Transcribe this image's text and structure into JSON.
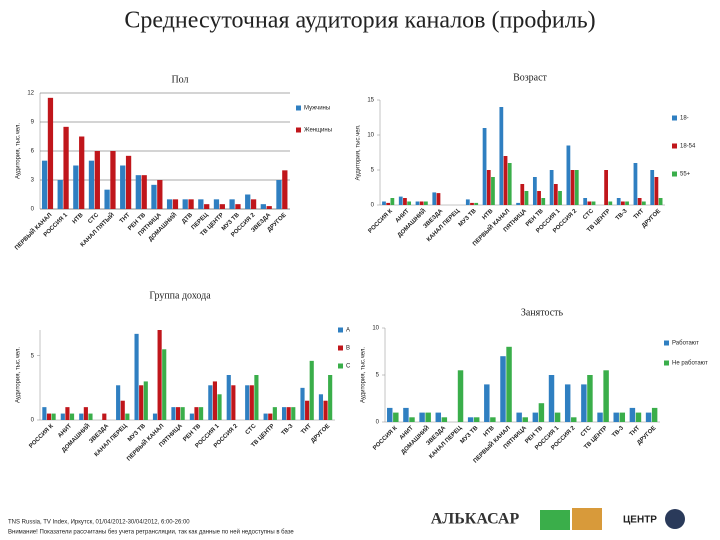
{
  "header": {
    "title": "Среднесуточная аудитория каналов (профиль)"
  },
  "chart_data": [
    {
      "type": "bar",
      "title": "Пол",
      "ylabel": "Аудитория, тыс.чел.",
      "categories": [
        "ПЕРВЫЙ КАНАЛ",
        "РОССИЯ 1",
        "НТВ",
        "СТС",
        "КАНАЛ ПЯТЫЙ",
        "ТНТ",
        "РЕН ТВ",
        "ПЯТНИЦА",
        "ДОМАШНИЙ",
        "ДТВ",
        "ПЕРЕЦ",
        "ТВ ЦЕНТР",
        "МУЗ ТВ",
        "РОССИЯ 2",
        "ЗВЕЗДА",
        "ДРУГОЕ"
      ],
      "series": [
        {
          "name": "Мужчины",
          "color": "#2f7fc1",
          "values": [
            5,
            3,
            4.5,
            5,
            2,
            4.5,
            3.5,
            2.5,
            1,
            1,
            1,
            1,
            1,
            1.5,
            0.5,
            3
          ]
        },
        {
          "name": "Женщины",
          "color": "#c0161b",
          "values": [
            11.5,
            8.5,
            7.5,
            6,
            6,
            5.5,
            3.5,
            3,
            1,
            1,
            0.5,
            0.5,
            0.5,
            1,
            0.3,
            4
          ]
        }
      ],
      "ylim": [
        0,
        12
      ],
      "yticks": [
        0,
        3,
        6,
        9,
        12
      ],
      "grid": true
    },
    {
      "type": "bar",
      "title": "Возраст",
      "ylabel": "Аудитория, тыс.чел.",
      "categories": [
        "РОССИЯ К",
        "АНИТ",
        "ДОМАШНИЙ",
        "ЗВЕЗДА",
        "КАНАЛ ПЕРЕЦ",
        "МУЗ ТВ",
        "НТВ",
        "ПЕРВЫЙ КАНАЛ",
        "ПЯТНИЦА",
        "РЕН ТВ",
        "РОССИЯ 1",
        "РОССИЯ 2",
        "СТС",
        "ТВ ЦЕНТР",
        "ТВ-3",
        "ТНТ",
        "ДРУГОЕ"
      ],
      "series": [
        {
          "name": "18-",
          "color": "#2f7fc1",
          "values": [
            0.5,
            1.2,
            0.5,
            1.8,
            0,
            0.8,
            11,
            14,
            0.3,
            4,
            5,
            8.5,
            1,
            0,
            1,
            6,
            5
          ]
        },
        {
          "name": "18-54",
          "color": "#c0161b",
          "values": [
            0.3,
            1,
            0.5,
            1.7,
            0,
            0.3,
            5,
            7,
            3,
            2,
            3,
            5,
            0.5,
            5,
            0.5,
            1,
            4
          ]
        },
        {
          "name": "55+",
          "color": "#3aae4a",
          "values": [
            1,
            0.5,
            0.5,
            0,
            0,
            0.3,
            4,
            6,
            2,
            1,
            2,
            5,
            0.5,
            0.5,
            0.5,
            0.5,
            1
          ]
        }
      ],
      "ylim": [
        0,
        15
      ],
      "yticks": [
        0,
        5,
        10,
        15
      ],
      "grid": false
    },
    {
      "type": "bar",
      "title": "Группа дохода",
      "ylabel": "Аудитория, тыс.чел.",
      "categories": [
        "РОССИЯ К",
        "АНИТ",
        "ДОМАШНИЙ",
        "ЗВЕЗДА",
        "КАНАЛ ПЕРЕЦ",
        "МУЗ ТВ",
        "ПЕРВЫЙ КАНАЛ",
        "ПЯТНИЦА",
        "РЕН ТВ",
        "РОССИЯ 1",
        "РОССИЯ 2",
        "СТС",
        "ТВ ЦЕНТР",
        "ТВ-3",
        "ТНТ",
        "ДРУГОЕ"
      ],
      "series": [
        {
          "name": "А",
          "color": "#2f7fc1",
          "values": [
            1,
            0.5,
            0.5,
            0,
            2.7,
            6.7,
            0.5,
            1,
            0.5,
            2.7,
            3.5,
            2.7,
            0.5,
            1,
            2.5,
            2
          ]
        },
        {
          "name": "В",
          "color": "#c0161b",
          "values": [
            0.5,
            1,
            1,
            0.5,
            1.5,
            2.7,
            7,
            1,
            1,
            3,
            2.7,
            2.7,
            0.5,
            1,
            1.5,
            1.5
          ]
        },
        {
          "name": "С",
          "color": "#3aae4a",
          "values": [
            0.5,
            0.5,
            0.5,
            0,
            0.5,
            3,
            5.5,
            1,
            1,
            2,
            0,
            3.5,
            1,
            1,
            4.6,
            3.5
          ]
        }
      ],
      "ylim": [
        0,
        7
      ],
      "yticks": [
        0,
        5
      ],
      "grid": false
    },
    {
      "type": "bar",
      "title": "Занятость",
      "ylabel": "Аудитория, тыс.чел.",
      "categories": [
        "РОССИЯ К",
        "АНИТ",
        "ДОМАШНИЙ",
        "ЗВЕЗДА",
        "КАНАЛ ПЕРЕЦ",
        "МУЗ ТВ",
        "НТВ",
        "ПЕРВЫЙ КАНАЛ",
        "ПЯТНИЦА",
        "РЕН ТВ",
        "РОССИЯ 1",
        "РОССИЯ 2",
        "СТС",
        "ТВ ЦЕНТР",
        "ТВ-3",
        "ТНТ",
        "ДРУГОЕ"
      ],
      "series": [
        {
          "name": "Работают",
          "color": "#2f7fc1",
          "values": [
            1.5,
            1.5,
            1,
            1,
            0,
            0.5,
            4,
            7,
            1,
            1,
            5,
            4,
            4,
            1,
            1,
            1.5,
            1
          ]
        },
        {
          "name": "Не работают",
          "color": "#3aae4a",
          "values": [
            1,
            0.5,
            1,
            0.5,
            5.5,
            0.5,
            0.5,
            8,
            0.5,
            2,
            1,
            0.5,
            5,
            5.5,
            1,
            1,
            1.5
          ]
        }
      ],
      "ylim": [
        0,
        10
      ],
      "yticks": [
        0,
        5,
        10
      ],
      "grid": false
    }
  ],
  "footer": {
    "source": "TNS Russia, TV Index, Иркутск, 01/04/2012-30/04/2012, 6:00-26:00",
    "note": "Внимание! Показатели рассчитаны без учета ретрансляции, так как данные по ней недоступны в базе"
  },
  "logos": {
    "alkasar": "АЛЬКАСАР",
    "center": "ЦЕНТР"
  }
}
